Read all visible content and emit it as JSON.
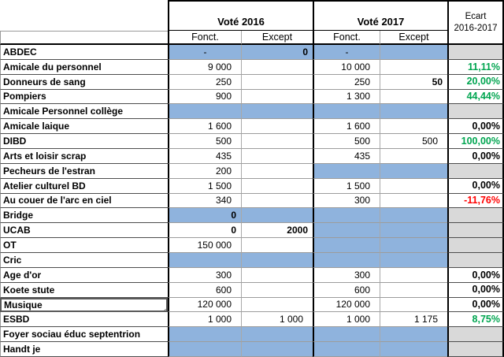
{
  "colors": {
    "blue_fill": "#8FB3DD",
    "gray_fill": "#D9D9D9",
    "positive_green": "#00A550",
    "negative_red": "#FF0000"
  },
  "header": {
    "vote_2016": "Voté 2016",
    "vote_2017": "Voté 2017",
    "ecart_line1": "Ecart",
    "ecart_line2": "2016-2017",
    "sub_fonct_2016": "Fonct.",
    "sub_except_2016": "Except",
    "sub_fonct_2017": "Fonct.",
    "sub_except_2017": "Except"
  },
  "rows": [
    {
      "name": "ABDEC",
      "c": [
        {
          "v": "-",
          "bg": "b",
          "al": "c"
        },
        {
          "v": "0",
          "bg": "b",
          "bold": true
        },
        {
          "v": "-",
          "bg": "b",
          "al": "c"
        },
        {
          "v": "",
          "bg": "b"
        }
      ],
      "ecart": {
        "v": "",
        "bg": "g"
      }
    },
    {
      "name": "Amicale du personnel",
      "c": [
        {
          "v": "9 000"
        },
        {
          "v": ""
        },
        {
          "v": "10 000"
        },
        {
          "v": ""
        }
      ],
      "ecart": {
        "v": "11,11%",
        "cls": "green"
      }
    },
    {
      "name": "Donneurs de sang",
      "c": [
        {
          "v": "250"
        },
        {
          "v": ""
        },
        {
          "v": "250"
        },
        {
          "v": "50",
          "bold": true
        }
      ],
      "ecart": {
        "v": "20,00%",
        "cls": "green"
      }
    },
    {
      "name": "Pompiers",
      "c": [
        {
          "v": "900"
        },
        {
          "v": ""
        },
        {
          "v": "1 300"
        },
        {
          "v": ""
        }
      ],
      "ecart": {
        "v": "44,44%",
        "cls": "green"
      }
    },
    {
      "name": "Amicale Personnel collège",
      "c": [
        {
          "v": "",
          "bg": "b"
        },
        {
          "v": "",
          "bg": "b"
        },
        {
          "v": "",
          "bg": "b"
        },
        {
          "v": "",
          "bg": "b"
        }
      ],
      "ecart": {
        "v": "",
        "bg": "g"
      }
    },
    {
      "name": "Amicale laique",
      "c": [
        {
          "v": "1 600"
        },
        {
          "v": ""
        },
        {
          "v": "1 600"
        },
        {
          "v": ""
        }
      ],
      "ecart": {
        "v": "0,00%"
      }
    },
    {
      "name": "DIBD",
      "c": [
        {
          "v": "500"
        },
        {
          "v": ""
        },
        {
          "v": "500"
        },
        {
          "v": "500"
        }
      ],
      "ecart": {
        "v": "100,00%",
        "cls": "green"
      }
    },
    {
      "name": "Arts et loisir scrap",
      "c": [
        {
          "v": "435"
        },
        {
          "v": ""
        },
        {
          "v": "435"
        },
        {
          "v": ""
        }
      ],
      "ecart": {
        "v": "0,00%"
      }
    },
    {
      "name": "Pecheurs de l'estran",
      "c": [
        {
          "v": "200"
        },
        {
          "v": ""
        },
        {
          "v": "",
          "bg": "b"
        },
        {
          "v": "",
          "bg": "b"
        }
      ],
      "ecart": {
        "v": "",
        "bg": "g"
      }
    },
    {
      "name": "Atelier culturel BD",
      "c": [
        {
          "v": "1 500"
        },
        {
          "v": ""
        },
        {
          "v": "1 500"
        },
        {
          "v": ""
        }
      ],
      "ecart": {
        "v": "0,00%"
      }
    },
    {
      "name": "Au couer de l'arc en ciel",
      "c": [
        {
          "v": "340"
        },
        {
          "v": ""
        },
        {
          "v": "300"
        },
        {
          "v": ""
        }
      ],
      "ecart": {
        "v": "-11,76%",
        "cls": "red"
      }
    },
    {
      "name": "Bridge",
      "c": [
        {
          "v": "0",
          "bg": "b",
          "bold": true
        },
        {
          "v": "",
          "bg": "b"
        },
        {
          "v": "",
          "bg": "b"
        },
        {
          "v": "",
          "bg": "b"
        }
      ],
      "ecart": {
        "v": "",
        "bg": "g"
      }
    },
    {
      "name": "UCAB",
      "c": [
        {
          "v": "0",
          "bold": true
        },
        {
          "v": "2000",
          "bold": true
        },
        {
          "v": "",
          "bg": "b"
        },
        {
          "v": "",
          "bg": "b"
        }
      ],
      "ecart": {
        "v": "",
        "bg": "g"
      }
    },
    {
      "name": "OT",
      "c": [
        {
          "v": "150 000"
        },
        {
          "v": ""
        },
        {
          "v": "",
          "bg": "b"
        },
        {
          "v": "",
          "bg": "b"
        }
      ],
      "ecart": {
        "v": "",
        "bg": "g"
      }
    },
    {
      "name": "Cric",
      "c": [
        {
          "v": "",
          "bg": "b"
        },
        {
          "v": "",
          "bg": "b"
        },
        {
          "v": "",
          "bg": "b"
        },
        {
          "v": "",
          "bg": "b"
        }
      ],
      "ecart": {
        "v": "",
        "bg": "g"
      }
    },
    {
      "name": "Age d'or",
      "c": [
        {
          "v": "300"
        },
        {
          "v": ""
        },
        {
          "v": "300"
        },
        {
          "v": ""
        }
      ],
      "ecart": {
        "v": "0,00%"
      }
    },
    {
      "name": "Koete stute",
      "c": [
        {
          "v": "600"
        },
        {
          "v": ""
        },
        {
          "v": "600"
        },
        {
          "v": ""
        }
      ],
      "ecart": {
        "v": "0,00%"
      }
    },
    {
      "name": "Musique",
      "selected": true,
      "c": [
        {
          "v": "120 000"
        },
        {
          "v": ""
        },
        {
          "v": "120 000"
        },
        {
          "v": ""
        }
      ],
      "ecart": {
        "v": "0,00%"
      }
    },
    {
      "name": "ESBD",
      "c": [
        {
          "v": "1 000"
        },
        {
          "v": "1 000"
        },
        {
          "v": "1 000"
        },
        {
          "v": "1 175"
        }
      ],
      "ecart": {
        "v": "8,75%",
        "cls": "green"
      }
    },
    {
      "name": "Foyer sociau éduc septentrion",
      "c": [
        {
          "v": "",
          "bg": "b"
        },
        {
          "v": "",
          "bg": "b"
        },
        {
          "v": "",
          "bg": "b"
        },
        {
          "v": "",
          "bg": "b"
        }
      ],
      "ecart": {
        "v": "",
        "bg": "g"
      }
    },
    {
      "name": "Handt je",
      "c": [
        {
          "v": "",
          "bg": "b"
        },
        {
          "v": "",
          "bg": "b"
        },
        {
          "v": "",
          "bg": "b"
        },
        {
          "v": "",
          "bg": "b"
        }
      ],
      "ecart": {
        "v": "",
        "bg": "g"
      }
    }
  ]
}
